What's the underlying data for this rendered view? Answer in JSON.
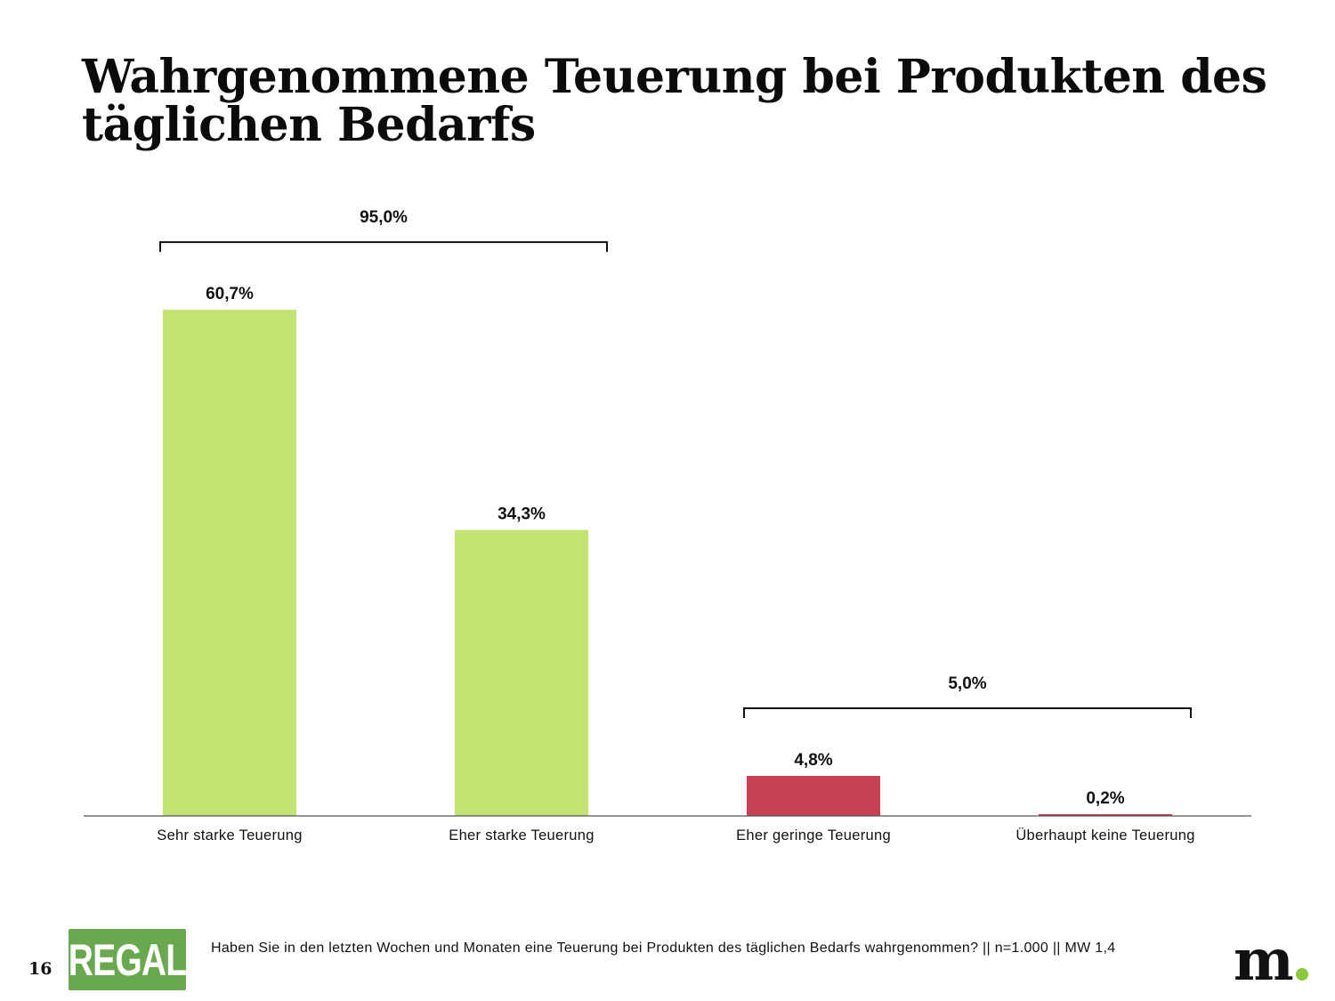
{
  "title": "Wahrgenommene Teuerung bei Produkten des täglichen Bedarfs",
  "chart_data": {
    "type": "bar",
    "categories": [
      "Sehr starke Teuerung",
      "Eher starke Teuerung",
      "Eher geringe Teuerung",
      "Überhaupt keine Teuerung"
    ],
    "values": [
      60.7,
      34.3,
      4.8,
      0.2
    ],
    "value_labels": [
      "60,7%",
      "34,3%",
      "4,8%",
      "0,2%"
    ],
    "bar_colors": [
      "#c5e373",
      "#c5e373",
      "#c54152",
      "#c54152"
    ],
    "ylim": [
      0,
      70
    ],
    "grid": false,
    "annotations": [
      {
        "label": "95,0%",
        "from_category": 0,
        "to_category": 1
      },
      {
        "label": "5,0%",
        "from_category": 2,
        "to_category": 3
      }
    ]
  },
  "footer": {
    "slide_number": "16",
    "logo_text": "REGAL",
    "footnote": "Haben Sie in den letzten Wochen und Monaten eine Teuerung bei Produkten des täglichen Bedarfs wahrgenommen? || n=1.000 || MW  1,4",
    "brand_letter": "m",
    "brand_dot_color": "#8dc63f"
  }
}
